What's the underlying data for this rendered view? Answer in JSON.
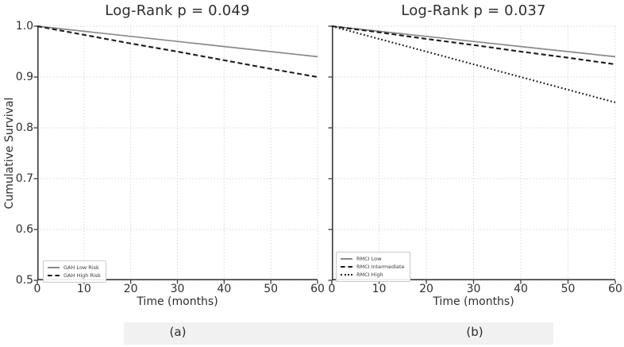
{
  "figure": {
    "type": "kaplan-meier-survival-curves",
    "background": "#ffffff",
    "caption_band_color": "#f1f1f1"
  },
  "colors": {
    "solid_line": "#8a8a8a",
    "dashed_line": "#1c1c1c",
    "dotted_line": "#1c1c1c",
    "grid": "#d7d7d7",
    "spine": "#3c3c3c",
    "text": "#2e2e2e"
  },
  "captions": {
    "a": "(a)",
    "b": "(b)"
  },
  "chart_data": [
    {
      "type": "line",
      "title": "Log-Rank p = 0.049",
      "p_value": 0.049,
      "xlabel": "Time (months)",
      "ylabel": "Cumulative Survival",
      "xlim": [
        0,
        60
      ],
      "ylim": [
        0.5,
        1.0
      ],
      "xticks": [
        0,
        10,
        20,
        30,
        40,
        50,
        60
      ],
      "yticks": [
        0.5,
        0.6,
        0.7,
        0.8,
        0.9,
        1.0
      ],
      "ytick_labels": [
        "0.5",
        "0.6",
        "0.7",
        "0.8",
        "0.9",
        "1.0"
      ],
      "grid": true,
      "legend_position": "lower-left",
      "x": [
        0,
        10,
        20,
        30,
        40,
        50,
        60
      ],
      "series": [
        {
          "name": "GAH Low Risk",
          "style": "solid",
          "color": "#8a8a8a",
          "values": [
            1.0,
            0.99,
            0.98,
            0.97,
            0.96,
            0.95,
            0.94
          ]
        },
        {
          "name": "GAH High Risk",
          "style": "dashed",
          "color": "#1c1c1c",
          "values": [
            1.0,
            0.983,
            0.966,
            0.95,
            0.933,
            0.916,
            0.9
          ]
        }
      ]
    },
    {
      "type": "line",
      "title": "Log-Rank p = 0.037",
      "p_value": 0.037,
      "xlabel": "Time (months)",
      "ylabel": "Cumulative Survival",
      "xlim": [
        0,
        60
      ],
      "ylim": [
        0.5,
        1.0
      ],
      "xticks": [
        0,
        10,
        20,
        30,
        40,
        50,
        60
      ],
      "yticks": [
        0.5,
        0.6,
        0.7,
        0.8,
        0.9,
        1.0
      ],
      "ytick_labels": [
        "0.5",
        "0.6",
        "0.7",
        "0.8",
        "0.9",
        "1.0"
      ],
      "grid": true,
      "legend_position": "lower-left",
      "x": [
        0,
        10,
        20,
        30,
        40,
        50,
        60
      ],
      "series": [
        {
          "name": "RMCI Low",
          "style": "solid",
          "color": "#8a8a8a",
          "values": [
            1.0,
            0.99,
            0.98,
            0.97,
            0.96,
            0.95,
            0.94
          ]
        },
        {
          "name": "RMCI Intermediate",
          "style": "dashed",
          "color": "#1c1c1c",
          "values": [
            1.0,
            0.988,
            0.975,
            0.963,
            0.95,
            0.938,
            0.925
          ]
        },
        {
          "name": "RMCI High",
          "style": "dotted",
          "color": "#1c1c1c",
          "values": [
            1.0,
            0.975,
            0.95,
            0.925,
            0.9,
            0.875,
            0.85
          ]
        }
      ]
    }
  ]
}
